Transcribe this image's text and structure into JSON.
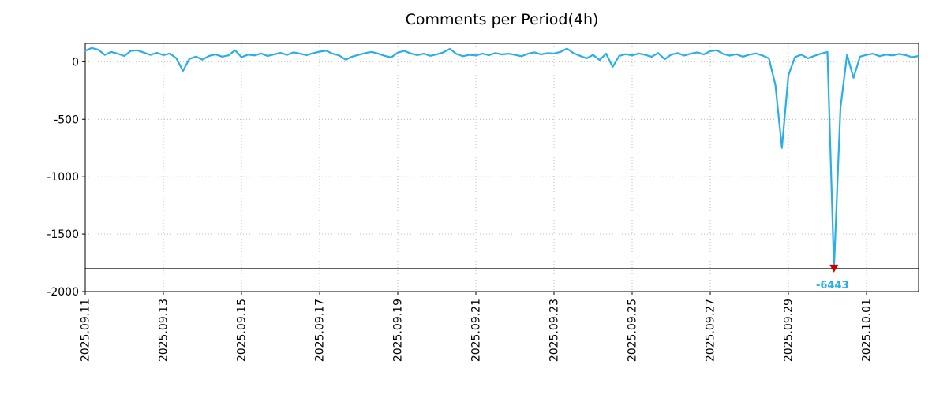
{
  "title": "Comments per Period(4h)",
  "chart_data": {
    "type": "line",
    "title": "Comments per Period(4h)",
    "x_start": "2025.09.11 00:00",
    "interval_hours": 4,
    "x_tick_labels": [
      "2025.09.11",
      "2025.09.13",
      "2025.09.15",
      "2025.09.17",
      "2025.09.19",
      "2025.09.21",
      "2025.09.23",
      "2025.09.25",
      "2025.09.27",
      "2025.09.29",
      "2025.10.01"
    ],
    "x_tick_indices": [
      0,
      12,
      24,
      36,
      48,
      60,
      72,
      84,
      96,
      108,
      120
    ],
    "y_ticks": [
      0,
      -500,
      -1000,
      -1500,
      -2000
    ],
    "ylim": [
      -2000,
      160
    ],
    "grid": true,
    "legend": "none",
    "line_color": "#2aaee8",
    "grid_color": "#b3b3b3",
    "clip_min": -1800,
    "threshold_line_y": -1800,
    "values": [
      95,
      120,
      105,
      60,
      85,
      70,
      50,
      95,
      100,
      80,
      60,
      78,
      58,
      72,
      30,
      -80,
      25,
      45,
      18,
      50,
      65,
      45,
      55,
      100,
      40,
      62,
      55,
      72,
      50,
      65,
      78,
      60,
      82,
      70,
      58,
      75,
      88,
      96,
      70,
      55,
      18,
      45,
      60,
      76,
      86,
      70,
      52,
      38,
      80,
      95,
      72,
      58,
      70,
      52,
      65,
      82,
      112,
      68,
      48,
      60,
      55,
      70,
      58,
      76,
      64,
      70,
      60,
      48,
      70,
      82,
      64,
      75,
      72,
      86,
      115,
      74,
      52,
      30,
      60,
      15,
      70,
      -45,
      50,
      66,
      55,
      72,
      60,
      44,
      76,
      22,
      62,
      76,
      54,
      70,
      82,
      64,
      92,
      100,
      68,
      54,
      66,
      44,
      62,
      72,
      55,
      30,
      -200,
      -750,
      -120,
      40,
      62,
      30,
      52,
      70,
      85,
      -6443,
      -400,
      60,
      -140,
      45,
      60,
      70,
      48,
      62,
      55,
      68,
      58,
      40,
      50
    ],
    "annotation": {
      "index": 115,
      "actual_value": -6443,
      "label": "-6443",
      "marker": "red-down-triangle",
      "marker_color": "#cc0000",
      "text_color": "#2aaee8"
    }
  }
}
